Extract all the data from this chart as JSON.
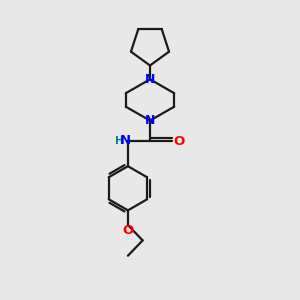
{
  "bg_color": "#e8e8e8",
  "bond_color": "#1a1a1a",
  "N_color": "#0000ff",
  "O_color": "#ff0000",
  "NH_color": "#008080",
  "line_width": 1.6,
  "fig_size": [
    3.0,
    3.0
  ],
  "dpi": 100,
  "xlim": [
    0,
    10
  ],
  "ylim": [
    0,
    10
  ]
}
